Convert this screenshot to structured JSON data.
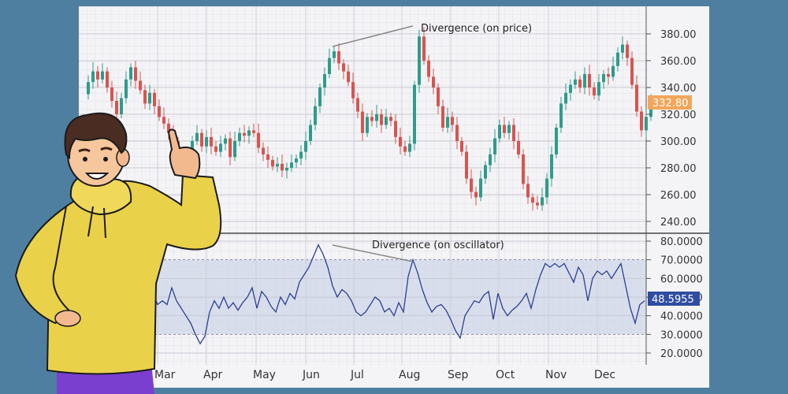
{
  "chart_data": [
    {
      "type": "candlestick",
      "annotation": "Divergence (on price)",
      "last_price_label": "332.80",
      "y_ticks": [
        "380.00",
        "360.00",
        "340.00",
        "320.00",
        "300.00",
        "280.00",
        "260.00",
        "240.00"
      ],
      "ylim": [
        235,
        388
      ],
      "close_series": [
        [
          0,
          335
        ],
        [
          6,
          344
        ],
        [
          12,
          352
        ],
        [
          18,
          346
        ],
        [
          24,
          352
        ],
        [
          30,
          340
        ],
        [
          36,
          330
        ],
        [
          42,
          320
        ],
        [
          48,
          332
        ],
        [
          54,
          346
        ],
        [
          60,
          355
        ],
        [
          66,
          345
        ],
        [
          72,
          338
        ],
        [
          78,
          328
        ],
        [
          84,
          336
        ],
        [
          90,
          326
        ],
        [
          96,
          318
        ],
        [
          102,
          313
        ],
        [
          108,
          306
        ],
        [
          114,
          300
        ],
        [
          120,
          288
        ],
        [
          126,
          282
        ],
        [
          132,
          270
        ],
        [
          138,
          300
        ],
        [
          144,
          306
        ],
        [
          150,
          296
        ],
        [
          156,
          303
        ],
        [
          162,
          296
        ],
        [
          168,
          292
        ],
        [
          174,
          298
        ],
        [
          180,
          302
        ],
        [
          186,
          288
        ],
        [
          192,
          300
        ],
        [
          198,
          306
        ],
        [
          204,
          304
        ],
        [
          210,
          308
        ],
        [
          216,
          306
        ],
        [
          222,
          295
        ],
        [
          228,
          290
        ],
        [
          234,
          286
        ],
        [
          240,
          281
        ],
        [
          246,
          283
        ],
        [
          252,
          278
        ],
        [
          258,
          280
        ],
        [
          264,
          284
        ],
        [
          270,
          287
        ],
        [
          276,
          292
        ],
        [
          282,
          300
        ],
        [
          288,
          312
        ],
        [
          294,
          326
        ],
        [
          300,
          340
        ],
        [
          306,
          350
        ],
        [
          312,
          362
        ],
        [
          318,
          367
        ],
        [
          324,
          358
        ],
        [
          330,
          352
        ],
        [
          336,
          344
        ],
        [
          342,
          332
        ],
        [
          348,
          322
        ],
        [
          354,
          306
        ],
        [
          360,
          318
        ],
        [
          366,
          315
        ],
        [
          372,
          320
        ],
        [
          378,
          312
        ],
        [
          384,
          318
        ],
        [
          390,
          315
        ],
        [
          396,
          303
        ],
        [
          402,
          296
        ],
        [
          408,
          292
        ],
        [
          414,
          298
        ],
        [
          420,
          342
        ],
        [
          426,
          378
        ],
        [
          432,
          360
        ],
        [
          438,
          348
        ],
        [
          444,
          340
        ],
        [
          450,
          326
        ],
        [
          456,
          310
        ],
        [
          462,
          318
        ],
        [
          468,
          312
        ],
        [
          474,
          300
        ],
        [
          480,
          292
        ],
        [
          486,
          272
        ],
        [
          492,
          262
        ],
        [
          498,
          258
        ],
        [
          504,
          272
        ],
        [
          510,
          282
        ],
        [
          516,
          290
        ],
        [
          522,
          302
        ],
        [
          528,
          312
        ],
        [
          534,
          306
        ],
        [
          540,
          312
        ],
        [
          546,
          300
        ],
        [
          552,
          290
        ],
        [
          558,
          268
        ],
        [
          564,
          258
        ],
        [
          570,
          254
        ],
        [
          576,
          252
        ],
        [
          582,
          258
        ],
        [
          588,
          272
        ],
        [
          594,
          290
        ],
        [
          600,
          310
        ],
        [
          606,
          328
        ],
        [
          612,
          336
        ],
        [
          618,
          342
        ],
        [
          624,
          346
        ],
        [
          630,
          340
        ],
        [
          636,
          350
        ],
        [
          642,
          340
        ],
        [
          648,
          334
        ],
        [
          654,
          344
        ],
        [
          660,
          350
        ],
        [
          666,
          348
        ],
        [
          672,
          356
        ],
        [
          678,
          366
        ],
        [
          684,
          372
        ],
        [
          690,
          362
        ],
        [
          696,
          342
        ],
        [
          702,
          322
        ],
        [
          708,
          308
        ],
        [
          714,
          318
        ],
        [
          720,
          332
        ]
      ]
    },
    {
      "type": "line",
      "annotation": "Divergence (on oscillator)",
      "last_value_label": "48.5955",
      "y_ticks": [
        "80.0000",
        "70.0000",
        "60.0000",
        "50.0000",
        "40.0000",
        "30.0000",
        "20.0000"
      ],
      "ylim": [
        17,
        84
      ],
      "band": [
        30,
        70
      ],
      "series": [
        [
          95,
          51
        ],
        [
          100,
          46
        ],
        [
          106,
          48
        ],
        [
          112,
          46
        ],
        [
          118,
          55
        ],
        [
          124,
          48
        ],
        [
          130,
          44
        ],
        [
          136,
          40
        ],
        [
          142,
          36
        ],
        [
          148,
          30
        ],
        [
          154,
          25
        ],
        [
          160,
          29
        ],
        [
          166,
          42
        ],
        [
          172,
          48
        ],
        [
          178,
          44
        ],
        [
          184,
          50
        ],
        [
          190,
          44
        ],
        [
          196,
          47
        ],
        [
          202,
          43
        ],
        [
          208,
          47
        ],
        [
          214,
          50
        ],
        [
          220,
          55
        ],
        [
          226,
          44
        ],
        [
          232,
          53
        ],
        [
          238,
          50
        ],
        [
          244,
          45
        ],
        [
          250,
          42
        ],
        [
          256,
          50
        ],
        [
          262,
          46
        ],
        [
          268,
          52
        ],
        [
          274,
          49
        ],
        [
          280,
          58
        ],
        [
          286,
          62
        ],
        [
          292,
          66
        ],
        [
          298,
          72
        ],
        [
          304,
          78
        ],
        [
          310,
          73
        ],
        [
          316,
          66
        ],
        [
          322,
          56
        ],
        [
          328,
          50
        ],
        [
          334,
          54
        ],
        [
          340,
          52
        ],
        [
          346,
          48
        ],
        [
          352,
          42
        ],
        [
          358,
          40
        ],
        [
          364,
          42
        ],
        [
          370,
          46
        ],
        [
          376,
          50
        ],
        [
          382,
          48
        ],
        [
          388,
          42
        ],
        [
          394,
          44
        ],
        [
          400,
          40
        ],
        [
          406,
          47
        ],
        [
          412,
          42
        ],
        [
          418,
          61
        ],
        [
          424,
          70
        ],
        [
          430,
          63
        ],
        [
          436,
          54
        ],
        [
          442,
          47
        ],
        [
          448,
          42
        ],
        [
          454,
          45
        ],
        [
          460,
          46
        ],
        [
          466,
          43
        ],
        [
          472,
          38
        ],
        [
          478,
          32
        ],
        [
          484,
          28
        ],
        [
          490,
          40
        ],
        [
          496,
          44
        ],
        [
          502,
          48
        ],
        [
          508,
          47
        ],
        [
          514,
          51
        ],
        [
          520,
          53
        ],
        [
          526,
          38
        ],
        [
          532,
          52
        ],
        [
          538,
          44
        ],
        [
          544,
          40
        ],
        [
          550,
          43
        ],
        [
          556,
          45
        ],
        [
          562,
          48
        ],
        [
          568,
          52
        ],
        [
          574,
          44
        ],
        [
          580,
          54
        ],
        [
          586,
          62
        ],
        [
          592,
          68
        ],
        [
          598,
          66
        ],
        [
          604,
          68
        ],
        [
          610,
          66
        ],
        [
          616,
          68
        ],
        [
          622,
          63
        ],
        [
          628,
          58
        ],
        [
          634,
          66
        ],
        [
          640,
          62
        ],
        [
          646,
          48
        ],
        [
          652,
          60
        ],
        [
          658,
          64
        ],
        [
          664,
          62
        ],
        [
          670,
          64
        ],
        [
          676,
          60
        ],
        [
          682,
          64
        ],
        [
          688,
          68
        ],
        [
          694,
          56
        ],
        [
          700,
          44
        ],
        [
          706,
          36
        ],
        [
          712,
          46
        ],
        [
          718,
          48
        ]
      ],
      "x_labels": [
        "Mar",
        "Apr",
        "May",
        "Jun",
        "Jul",
        "Aug",
        "Sep",
        "Oct",
        "Nov",
        "Dec"
      ]
    }
  ]
}
